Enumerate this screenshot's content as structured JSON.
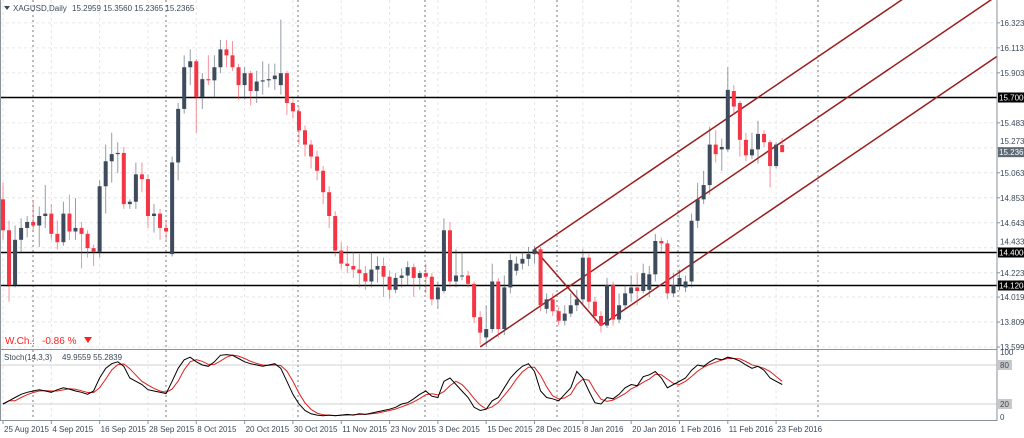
{
  "header": {
    "symbol": "XAGUSD,Daily",
    "ohlc_text": "15.2959 15.3560 15.2365 15.2365"
  },
  "weekly_change": {
    "label": "W.Ch.:",
    "value": "-0.86 %",
    "direction": "down",
    "color": "#ff2020"
  },
  "colors": {
    "bull": "#3d4b5c",
    "bear": "#f23645",
    "pitchfork": "#9b1c1c",
    "level_line": "#000000",
    "stoch_k": "#000000",
    "stoch_d": "#e02020"
  },
  "chart_data": [
    {
      "type": "candlestick",
      "title": "XAGUSD,Daily",
      "ylim": [
        13.591,
        16.515
      ],
      "grid": true,
      "x_ticks": [
        "25 Aug 2015",
        "4 Sep 2015",
        "16 Sep 2015",
        "28 Sep 2015",
        "8 Oct 2015",
        "20 Oct 2015",
        "30 Oct 2015",
        "11 Nov 2015",
        "23 Nov 2015",
        "3 Dec 2015",
        "15 Dec 2015",
        "28 Dec 2015",
        "8 Jan 2016",
        "20 Jan 2016",
        "1 Feb 2016",
        "11 Feb 2016",
        "23 Feb 2016"
      ],
      "price_ticks": [
        "16.3230",
        "16.1130",
        "15.9030",
        "15.4830",
        "15.2730",
        "15.0630",
        "14.8530",
        "14.6430",
        "14.4330",
        "14.2230",
        "14.0190",
        "13.8090",
        "13.5990"
      ],
      "levels": [
        {
          "price": 15.7,
          "label": "15.7000"
        },
        {
          "price": 14.4,
          "label": "14.4000"
        },
        {
          "price": 14.1204,
          "label": "14.1204"
        }
      ],
      "current_price": {
        "price": 15.2365,
        "label": "15.2365"
      },
      "pitchfork": {
        "p1": {
          "index": 79,
          "price": 13.6
        },
        "p2": {
          "index": 88,
          "price": 14.42
        },
        "p3": {
          "index": 99,
          "price": 13.78
        }
      },
      "ohlc": [
        [
          14.84,
          14.98,
          14.5,
          14.58
        ],
        [
          14.58,
          14.66,
          13.98,
          14.12
        ],
        [
          14.12,
          14.62,
          14.1,
          14.5
        ],
        [
          14.5,
          14.68,
          14.4,
          14.6
        ],
        [
          14.6,
          14.7,
          14.52,
          14.65
        ],
        [
          14.65,
          14.82,
          14.58,
          14.62
        ],
        [
          14.62,
          14.78,
          14.44,
          14.7
        ],
        [
          14.7,
          14.96,
          14.6,
          14.72
        ],
        [
          14.72,
          14.8,
          14.5,
          14.55
        ],
        [
          14.55,
          14.66,
          14.42,
          14.48
        ],
        [
          14.48,
          14.82,
          14.45,
          14.72
        ],
        [
          14.72,
          14.88,
          14.5,
          14.57
        ],
        [
          14.57,
          14.85,
          14.5,
          14.6
        ],
        [
          14.6,
          14.65,
          14.26,
          14.55
        ],
        [
          14.55,
          14.58,
          14.35,
          14.43
        ],
        [
          14.43,
          14.46,
          14.28,
          14.4
        ],
        [
          14.4,
          15.0,
          14.35,
          14.95
        ],
        [
          14.95,
          15.3,
          14.72,
          15.16
        ],
        [
          15.16,
          15.4,
          14.98,
          15.22
        ],
        [
          15.22,
          15.32,
          15.06,
          15.23
        ],
        [
          15.23,
          15.28,
          14.76,
          14.8
        ],
        [
          14.8,
          14.84,
          14.76,
          14.82
        ],
        [
          14.82,
          15.15,
          14.76,
          15.05
        ],
        [
          15.05,
          15.15,
          14.9,
          15.01
        ],
        [
          15.01,
          15.05,
          14.6,
          14.7
        ],
        [
          14.7,
          14.8,
          14.56,
          14.72
        ],
        [
          14.72,
          14.76,
          14.5,
          14.6
        ],
        [
          14.6,
          14.66,
          14.5,
          14.57
        ],
        [
          14.38,
          15.2,
          14.36,
          15.15
        ],
        [
          15.15,
          15.65,
          15.0,
          15.6
        ],
        [
          15.6,
          16.05,
          15.56,
          15.95
        ],
        [
          15.95,
          16.1,
          15.8,
          16.0
        ],
        [
          16.0,
          16.02,
          15.4,
          15.7
        ],
        [
          15.7,
          15.9,
          15.6,
          15.85
        ],
        [
          15.85,
          16.05,
          15.8,
          15.84
        ],
        [
          15.84,
          16.05,
          15.7,
          15.95
        ],
        [
          15.95,
          16.18,
          15.9,
          16.1
        ],
        [
          16.1,
          16.18,
          15.95,
          16.05
        ],
        [
          16.05,
          16.17,
          15.92,
          15.95
        ],
        [
          15.95,
          15.98,
          15.68,
          15.8
        ],
        [
          15.8,
          15.95,
          15.68,
          15.9
        ],
        [
          15.9,
          15.92,
          15.63,
          15.75
        ],
        [
          15.75,
          15.92,
          15.65,
          15.83
        ],
        [
          15.83,
          16.0,
          15.72,
          15.84
        ],
        [
          15.84,
          15.98,
          15.78,
          15.85
        ],
        [
          15.85,
          15.98,
          15.76,
          15.88
        ],
        [
          15.8,
          16.35,
          15.72,
          15.9
        ],
        [
          15.9,
          15.92,
          15.55,
          15.65
        ],
        [
          15.65,
          15.68,
          15.52,
          15.58
        ],
        [
          15.58,
          15.62,
          15.3,
          15.42
        ],
        [
          15.42,
          15.46,
          15.2,
          15.3
        ],
        [
          15.3,
          15.34,
          15.1,
          15.2
        ],
        [
          15.2,
          15.25,
          15.0,
          15.08
        ],
        [
          15.08,
          15.12,
          14.8,
          14.9
        ],
        [
          14.9,
          14.95,
          14.6,
          14.7
        ],
        [
          14.7,
          14.74,
          14.36,
          14.41
        ],
        [
          14.41,
          14.48,
          14.25,
          14.3
        ],
        [
          14.3,
          14.45,
          14.22,
          14.28
        ],
        [
          14.28,
          14.4,
          14.18,
          14.25
        ],
        [
          14.25,
          14.38,
          14.1,
          14.22
        ],
        [
          14.22,
          14.28,
          14.08,
          14.15
        ],
        [
          14.15,
          14.4,
          14.1,
          14.25
        ],
        [
          14.25,
          14.36,
          14.14,
          14.28
        ],
        [
          14.28,
          14.35,
          14.02,
          14.19
        ],
        [
          14.19,
          14.24,
          14.0,
          14.08
        ],
        [
          14.08,
          14.22,
          14.05,
          14.18
        ],
        [
          14.18,
          14.26,
          14.1,
          14.2
        ],
        [
          14.2,
          14.32,
          14.12,
          14.27
        ],
        [
          14.27,
          14.3,
          14.02,
          14.18
        ],
        [
          14.18,
          14.24,
          14.08,
          14.22
        ],
        [
          14.22,
          14.3,
          14.05,
          14.19
        ],
        [
          14.19,
          14.22,
          13.95,
          14.0
        ],
        [
          14.0,
          14.15,
          13.92,
          14.1
        ],
        [
          14.07,
          14.68,
          14.05,
          14.58
        ],
        [
          14.58,
          14.65,
          14.1,
          14.15
        ],
        [
          14.15,
          14.42,
          14.1,
          14.2
        ],
        [
          14.2,
          14.4,
          14.16,
          14.2
        ],
        [
          14.2,
          14.24,
          14.1,
          14.13
        ],
        [
          14.13,
          14.15,
          13.8,
          13.85
        ],
        [
          13.85,
          13.9,
          13.62,
          13.72
        ],
        [
          13.68,
          13.95,
          13.6,
          13.75
        ],
        [
          13.75,
          14.3,
          13.72,
          14.15
        ],
        [
          14.15,
          14.18,
          13.68,
          13.75
        ],
        [
          13.75,
          14.2,
          13.7,
          14.1
        ],
        [
          14.1,
          14.38,
          14.05,
          14.33
        ],
        [
          14.24,
          14.36,
          14.2,
          14.3
        ],
        [
          14.3,
          14.4,
          14.25,
          14.34
        ],
        [
          14.34,
          14.44,
          14.28,
          14.38
        ],
        [
          14.38,
          14.45,
          14.3,
          14.42
        ],
        [
          14.42,
          14.44,
          13.9,
          13.95
        ],
        [
          13.92,
          14.05,
          13.88,
          14.0
        ],
        [
          14.0,
          14.05,
          13.86,
          13.9
        ],
        [
          13.9,
          13.94,
          13.78,
          13.82
        ],
        [
          13.82,
          13.95,
          13.78,
          13.88
        ],
        [
          13.88,
          14.05,
          13.85,
          13.95
        ],
        [
          13.95,
          14.08,
          13.9,
          14.0
        ],
        [
          14.0,
          14.42,
          13.95,
          14.35
        ],
        [
          14.35,
          14.38,
          13.92,
          13.98
        ],
        [
          13.98,
          14.02,
          13.8,
          13.86
        ],
        [
          13.86,
          13.9,
          13.72,
          13.78
        ],
        [
          13.78,
          14.18,
          13.76,
          14.12
        ],
        [
          14.12,
          14.15,
          13.78,
          13.83
        ],
        [
          13.83,
          14.05,
          13.8,
          13.95
        ],
        [
          13.95,
          14.12,
          13.92,
          14.05
        ],
        [
          14.05,
          14.2,
          13.98,
          14.1
        ],
        [
          14.1,
          14.22,
          13.95,
          14.07
        ],
        [
          14.07,
          14.3,
          14.05,
          14.22
        ],
        [
          14.08,
          14.28,
          14.02,
          14.21
        ],
        [
          14.21,
          14.55,
          14.15,
          14.49
        ],
        [
          14.49,
          14.52,
          14.4,
          14.47
        ],
        [
          14.47,
          14.5,
          14.0,
          14.05
        ],
        [
          14.05,
          14.22,
          14.02,
          14.12
        ],
        [
          14.12,
          14.25,
          14.08,
          14.18
        ],
        [
          14.1,
          14.2,
          14.06,
          14.15
        ],
        [
          14.15,
          14.72,
          14.1,
          14.66
        ],
        [
          14.66,
          14.98,
          14.6,
          14.84
        ],
        [
          14.84,
          15.08,
          14.8,
          14.96
        ],
        [
          14.96,
          15.45,
          14.88,
          15.3
        ],
        [
          15.3,
          15.42,
          15.15,
          15.22
        ],
        [
          15.26,
          15.35,
          15.08,
          15.28
        ],
        [
          15.26,
          15.95,
          15.24,
          15.76
        ],
        [
          15.75,
          15.8,
          15.55,
          15.62
        ],
        [
          15.65,
          15.67,
          15.2,
          15.34
        ],
        [
          15.34,
          15.4,
          15.16,
          15.21
        ],
        [
          15.21,
          15.4,
          15.18,
          15.26
        ],
        [
          15.26,
          15.5,
          15.14,
          15.39
        ],
        [
          15.39,
          15.42,
          15.28,
          15.32
        ],
        [
          15.32,
          15.34,
          14.94,
          15.12
        ],
        [
          15.12,
          15.32,
          15.1,
          15.3
        ],
        [
          15.2959,
          15.356,
          15.2365,
          15.2365
        ]
      ]
    },
    {
      "type": "line",
      "title": "Stoch(14,3,3)",
      "values_text": "49.9559 55.2839",
      "ylim": [
        0,
        100
      ],
      "y_ticks": [
        "100",
        "80",
        "20",
        "0"
      ],
      "levels": [
        80,
        20
      ],
      "k": [
        20,
        25,
        30,
        35,
        38,
        40,
        42,
        40,
        38,
        42,
        45,
        43,
        40,
        38,
        35,
        40,
        60,
        75,
        82,
        85,
        78,
        60,
        55,
        50,
        42,
        40,
        38,
        36,
        55,
        75,
        88,
        92,
        85,
        80,
        78,
        85,
        95,
        96,
        95,
        90,
        85,
        82,
        80,
        78,
        80,
        82,
        75,
        55,
        35,
        20,
        10,
        5,
        3,
        2,
        3,
        2,
        3,
        4,
        3,
        5,
        4,
        6,
        8,
        10,
        12,
        15,
        20,
        22,
        28,
        35,
        40,
        32,
        30,
        55,
        60,
        50,
        40,
        30,
        15,
        10,
        12,
        25,
        30,
        45,
        60,
        70,
        78,
        82,
        70,
        40,
        30,
        28,
        25,
        35,
        45,
        70,
        60,
        40,
        22,
        20,
        30,
        28,
        35,
        45,
        50,
        48,
        62,
        65,
        70,
        60,
        45,
        50,
        55,
        60,
        72,
        80,
        78,
        85,
        90,
        88,
        92,
        90,
        86,
        80,
        75,
        78,
        72,
        60,
        55,
        49.9559
      ]
    }
  ]
}
